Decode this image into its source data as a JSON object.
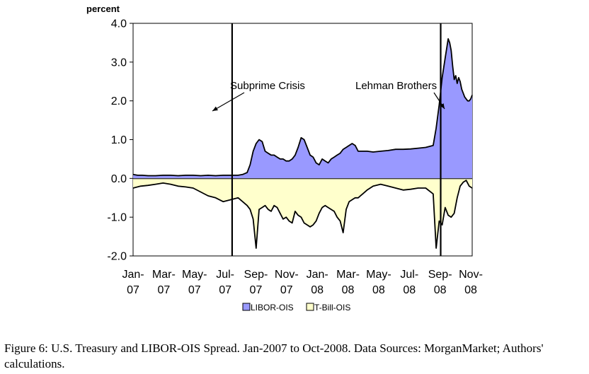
{
  "caption": "Figure 6: U.S. Treasury and LIBOR-OIS Spread. Jan-2007 to Oct-2008. Data Sources: MorganMarket; Authors' calculations.",
  "chart_data": {
    "type": "area",
    "title": "",
    "ylabel": "percent",
    "xlabel": "",
    "ylim": [
      -2.0,
      4.0
    ],
    "y_ticks": [
      "4.0",
      "3.0",
      "2.0",
      "1.0",
      "0.0",
      "-1.0",
      "-2.0"
    ],
    "x_tick_labels": [
      [
        "Jan-",
        "07"
      ],
      [
        "Mar-",
        "07"
      ],
      [
        "May-",
        "07"
      ],
      [
        "Jul-",
        "07"
      ],
      [
        "Sep-",
        "07"
      ],
      [
        "Nov-",
        "07"
      ],
      [
        "Jan-",
        "08"
      ],
      [
        "Mar-",
        "08"
      ],
      [
        "May-",
        "08"
      ],
      [
        "Jul-",
        "08"
      ],
      [
        "Sep-",
        "08"
      ],
      [
        "Nov-",
        "08"
      ]
    ],
    "x_range_months": [
      0,
      22.6
    ],
    "grid": false,
    "legend_position": "bottom",
    "colors": {
      "libor": "#9999ff",
      "tbill": "#ffffcc",
      "line": "#000000"
    },
    "series": [
      {
        "name": "LIBOR-OIS",
        "x": [
          0,
          0.3,
          0.6,
          1,
          1.5,
          2,
          2.5,
          3,
          3.5,
          4,
          4.5,
          5,
          5.5,
          6,
          6.5,
          7,
          7.3,
          7.6,
          7.8,
          8,
          8.2,
          8.4,
          8.6,
          8.8,
          9,
          9.2,
          9.4,
          9.6,
          9.8,
          10,
          10.2,
          10.4,
          10.6,
          10.8,
          11,
          11.2,
          11.4,
          11.6,
          11.8,
          12,
          12.2,
          12.4,
          12.6,
          12.8,
          13,
          13.2,
          13.4,
          13.6,
          13.8,
          14,
          14.2,
          14.4,
          14.6,
          14.8,
          15,
          15.3,
          15.6,
          16,
          16.5,
          17,
          17.5,
          18,
          18.5,
          19,
          19.5,
          20,
          20.2,
          20.4,
          20.6,
          20.8,
          21,
          21.1,
          21.2,
          21.3,
          21.4,
          21.5,
          21.6,
          21.7,
          21.8,
          21.9,
          22,
          22.1,
          22.2,
          22.3,
          22.4,
          22.5,
          22.6
        ],
        "values": [
          0.1,
          0.08,
          0.08,
          0.07,
          0.07,
          0.08,
          0.08,
          0.07,
          0.08,
          0.08,
          0.07,
          0.08,
          0.07,
          0.08,
          0.08,
          0.08,
          0.1,
          0.15,
          0.35,
          0.7,
          0.9,
          1.0,
          0.95,
          0.7,
          0.65,
          0.6,
          0.6,
          0.55,
          0.5,
          0.5,
          0.45,
          0.45,
          0.5,
          0.6,
          0.8,
          1.05,
          1.0,
          0.8,
          0.6,
          0.55,
          0.4,
          0.35,
          0.5,
          0.45,
          0.4,
          0.5,
          0.55,
          0.6,
          0.65,
          0.75,
          0.8,
          0.85,
          0.9,
          0.85,
          0.7,
          0.7,
          0.7,
          0.68,
          0.7,
          0.72,
          0.75,
          0.75,
          0.76,
          0.78,
          0.8,
          0.85,
          1.3,
          1.9,
          2.6,
          3.1,
          3.6,
          3.5,
          3.3,
          2.9,
          2.55,
          2.65,
          2.45,
          2.6,
          2.5,
          2.3,
          2.2,
          2.1,
          2.05,
          2.0,
          2.0,
          2.05,
          2.15
        ]
      },
      {
        "name": "T-Bill-OIS",
        "x": [
          0,
          0.5,
          1,
          1.5,
          2,
          2.5,
          3,
          3.5,
          4,
          4.5,
          5,
          5.5,
          6,
          6.5,
          7,
          7.3,
          7.6,
          7.8,
          8,
          8.2,
          8.4,
          8.6,
          8.8,
          9,
          9.2,
          9.4,
          9.6,
          9.8,
          10,
          10.2,
          10.4,
          10.6,
          10.8,
          11,
          11.2,
          11.4,
          11.6,
          11.8,
          12,
          12.2,
          12.4,
          12.6,
          12.8,
          13,
          13.2,
          13.4,
          13.6,
          13.8,
          14,
          14.2,
          14.4,
          14.6,
          14.8,
          15,
          15.3,
          15.6,
          16,
          16.5,
          17,
          17.5,
          18,
          18.5,
          19,
          19.5,
          20,
          20.2,
          20.4,
          20.6,
          20.8,
          21,
          21.2,
          21.4,
          21.6,
          21.8,
          22,
          22.2,
          22.4,
          22.6
        ],
        "values": [
          -0.25,
          -0.2,
          -0.18,
          -0.15,
          -0.12,
          -0.15,
          -0.2,
          -0.22,
          -0.25,
          -0.35,
          -0.45,
          -0.5,
          -0.6,
          -0.55,
          -0.5,
          -0.6,
          -0.7,
          -0.8,
          -1.05,
          -1.8,
          -0.8,
          -0.75,
          -0.7,
          -0.8,
          -0.85,
          -0.7,
          -0.75,
          -0.9,
          -1.05,
          -1.0,
          -1.1,
          -1.15,
          -0.85,
          -0.95,
          -1.0,
          -1.15,
          -1.2,
          -1.25,
          -1.2,
          -1.1,
          -0.9,
          -0.75,
          -0.7,
          -0.75,
          -0.8,
          -0.85,
          -1.0,
          -1.1,
          -1.4,
          -0.8,
          -0.6,
          -0.55,
          -0.5,
          -0.5,
          -0.4,
          -0.3,
          -0.2,
          -0.15,
          -0.2,
          -0.25,
          -0.3,
          -0.28,
          -0.25,
          -0.25,
          -0.4,
          -1.8,
          -1.1,
          -1.2,
          -0.75,
          -0.95,
          -1.0,
          -0.9,
          -0.5,
          -0.2,
          -0.1,
          -0.05,
          -0.2,
          -0.25
        ]
      }
    ],
    "vertical_markers": [
      {
        "label": "Subprime Crisis",
        "x": 6.6
      },
      {
        "label": "Lehman Brothers",
        "x": 20.5
      }
    ]
  }
}
